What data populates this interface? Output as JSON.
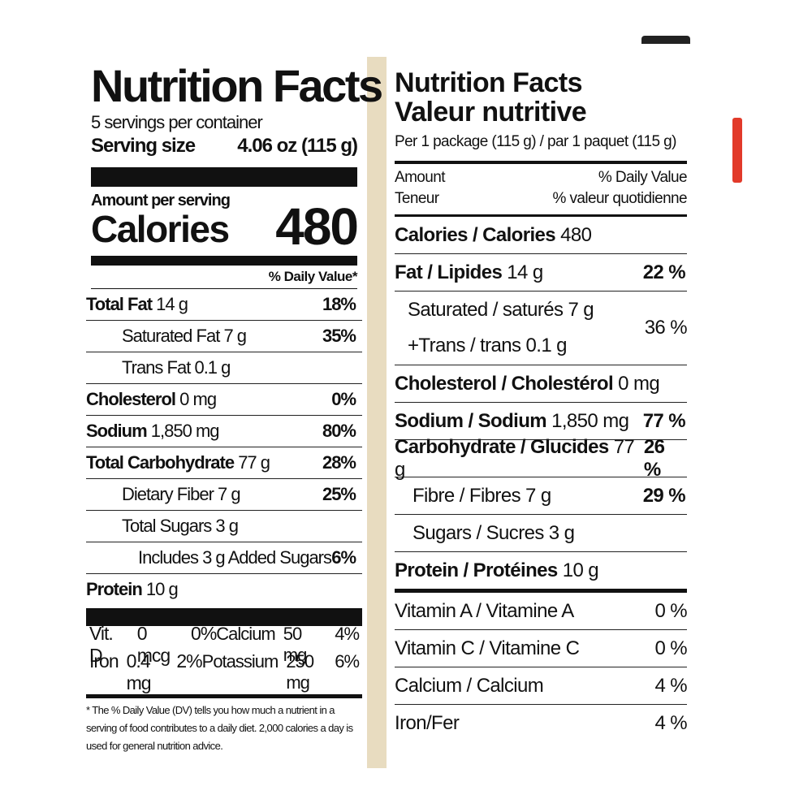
{
  "us_label": {
    "title": "Nutrition Facts",
    "servings": "5 servings per container",
    "serving_size_label": "Serving size",
    "serving_size_value": "4.06 oz (115 g)",
    "amount_per_serving": "Amount per serving",
    "calories_label": "Calories",
    "calories_value": "480",
    "dv_header": "% Daily Value*",
    "rows": [
      {
        "name": "Total Fat",
        "amount": "14 g",
        "dv": "18%"
      },
      {
        "name": "Saturated Fat",
        "amount": "7 g",
        "dv": "35%"
      },
      {
        "name": "Trans Fat",
        "amount": "0.1 g",
        "dv": ""
      },
      {
        "name": "Cholesterol",
        "amount": "0 mg",
        "dv": "0%"
      },
      {
        "name": "Sodium",
        "amount": "1,850 mg",
        "dv": "80%"
      },
      {
        "name": "Total Carbohydrate",
        "amount": "77 g",
        "dv": "28%"
      },
      {
        "name": "Dietary Fiber",
        "amount": "7 g",
        "dv": "25%"
      },
      {
        "name": "Total Sugars",
        "amount": "3 g",
        "dv": ""
      },
      {
        "name": "Includes",
        "amount": "3 g",
        "name2": "Added Sugars",
        "dv": "6%"
      },
      {
        "name": "Protein",
        "amount": "10 g",
        "dv": ""
      }
    ],
    "vitamins": {
      "vitd_label": "Vit. D",
      "vitd_amount": "0 mcg",
      "vitd_dv": "0%",
      "calcium_label": "Calcium",
      "calcium_amount": "50 mg",
      "calcium_dv": "4%",
      "iron_label": "Iron",
      "iron_amount": "0.4 mg",
      "iron_dv": "2%",
      "potassium_label": "Potassium",
      "potassium_amount": "250 mg",
      "potassium_dv": "6%"
    },
    "footnote": "* The % Daily Value (DV) tells you how much a nutrient in a serving of food contributes to a daily diet. 2,000 calories a day is used for general nutrition advice."
  },
  "ca_label": {
    "title_en": "Nutrition Facts",
    "title_fr": "Valeur nutritive",
    "per_package": "Per 1 package (115 g) / par 1 paquet (115 g)",
    "amount_en": "Amount",
    "amount_fr": "Teneur",
    "dv_en": "% Daily Value",
    "dv_fr": "% valeur quotidienne",
    "calories_label": "Calories / Calories",
    "calories_value": "480",
    "fat_label": "Fat / Lipides",
    "fat_amount": "14 g",
    "fat_dv": "22 %",
    "saturated_label": "Saturated / saturés 7 g",
    "trans_label": "+Trans / trans 0.1 g",
    "sat_trans_dv": "36 %",
    "cholesterol_label": "Cholesterol / Cholestérol",
    "cholesterol_amount": "0 mg",
    "sodium_label": "Sodium / Sodium",
    "sodium_amount": "1,850 mg",
    "sodium_dv": "77 %",
    "carb_label": "Carbohydrate / Glucides",
    "carb_amount": "77 g",
    "carb_dv": "26 %",
    "fibre_label": "Fibre / Fibres 7 g",
    "fibre_dv": "29 %",
    "sugars_label": "Sugars / Sucres 3 g",
    "protein_label": "Protein / Protéines",
    "protein_amount": "10 g",
    "vitamins": [
      {
        "label": "Vitamin A / Vitamine A",
        "dv": "0 %"
      },
      {
        "label": "Vitamin C / Vitamine C",
        "dv": "0 %"
      },
      {
        "label": "Calcium / Calcium",
        "dv": "4 %"
      },
      {
        "label": "Iron/Fer",
        "dv": "4 %"
      }
    ]
  }
}
